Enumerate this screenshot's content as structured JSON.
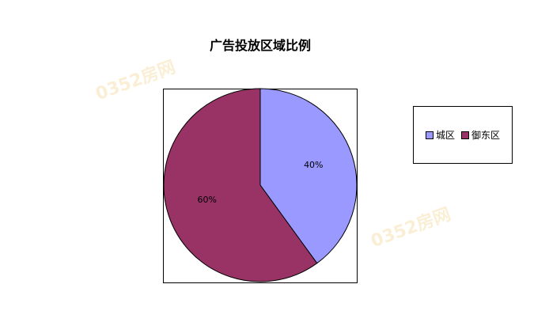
{
  "chart_data": {
    "type": "pie",
    "title": "广告投放区域比例",
    "categories": [
      "城区",
      "御东区"
    ],
    "values": [
      40,
      60
    ],
    "data_labels": [
      "40%",
      "60%"
    ],
    "colors": [
      "#9999ff",
      "#993366"
    ],
    "legend_position": "right"
  },
  "watermark": "0352房网"
}
